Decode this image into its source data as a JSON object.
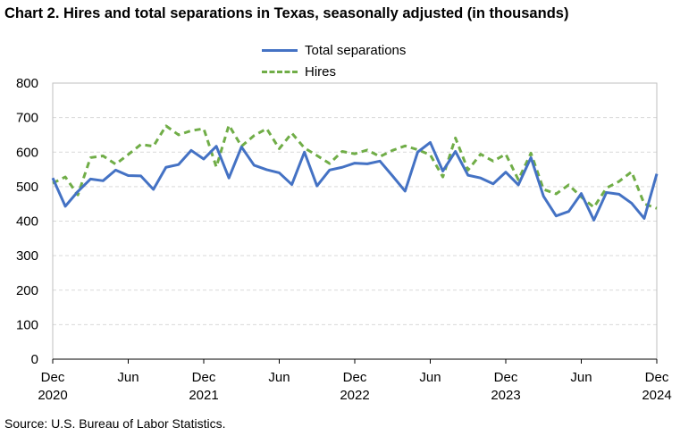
{
  "title": "Chart 2. Hires and total separations in Texas, seasonally adjusted (in thousands)",
  "source": "Source: U.S. Bureau of Labor Statistics.",
  "colors": {
    "total_separations": "#4472c4",
    "hires": "#70ad47",
    "grid": "#d9d9d9"
  },
  "chart_data": {
    "type": "line",
    "title": "Chart 2. Hires and total separations in Texas, seasonally adjusted (in thousands)",
    "xlabel": "",
    "ylabel": "",
    "ylim": [
      0,
      800
    ],
    "yticks": [
      "0",
      "100",
      "200",
      "300",
      "400",
      "500",
      "600",
      "700",
      "800"
    ],
    "x_tick_labels": [
      {
        "month": "Dec",
        "year": "2020"
      },
      {
        "month": "Jun",
        "year": ""
      },
      {
        "month": "Dec",
        "year": "2021"
      },
      {
        "month": "Jun",
        "year": ""
      },
      {
        "month": "Dec",
        "year": "2022"
      },
      {
        "month": "Jun",
        "year": ""
      },
      {
        "month": "Dec",
        "year": "2023"
      },
      {
        "month": "Jun",
        "year": ""
      },
      {
        "month": "Dec",
        "year": "2024"
      }
    ],
    "x_start": "Dec 2020",
    "x_end": "Dec 2024",
    "legend_position": "top-center",
    "grid": true,
    "series": [
      {
        "name": "Total separations",
        "style": "solid",
        "values": [
          525,
          443,
          486,
          522,
          517,
          548,
          532,
          531,
          492,
          556,
          564,
          605,
          580,
          617,
          525,
          615,
          562,
          549,
          540,
          506,
          600,
          502,
          548,
          556,
          568,
          566,
          574,
          531,
          487,
          600,
          628,
          545,
          602,
          533,
          525,
          508,
          542,
          505,
          584,
          472,
          415,
          428,
          480,
          403,
          483,
          478,
          452,
          408,
          537
        ]
      },
      {
        "name": "Hires",
        "style": "dashed",
        "values": [
          510,
          528,
          476,
          584,
          589,
          565,
          593,
          622,
          617,
          676,
          650,
          662,
          668,
          557,
          678,
          617,
          648,
          668,
          610,
          655,
          612,
          590,
          567,
          602,
          595,
          606,
          587,
          605,
          618,
          607,
          592,
          528,
          641,
          548,
          594,
          574,
          594,
          520,
          597,
          492,
          479,
          505,
          470,
          440,
          496,
          515,
          543,
          450,
          437
        ]
      }
    ]
  }
}
